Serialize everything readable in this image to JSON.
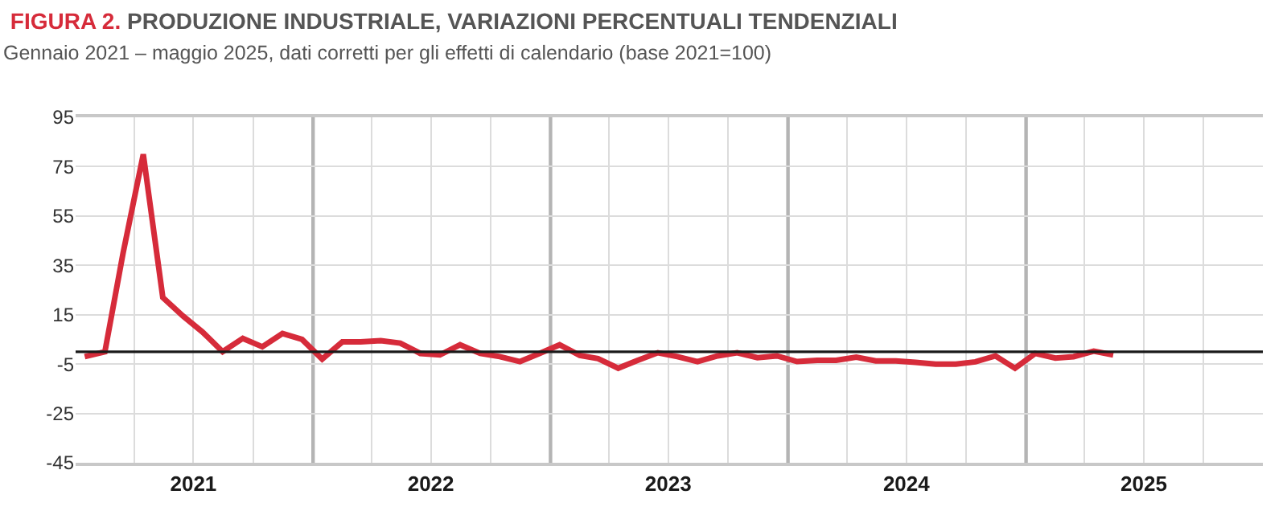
{
  "chart_data": {
    "type": "line",
    "title": "FIGURA 2. PRODUZIONE INDUSTRIALE, VARIAZIONI PERCENTUALI TENDENZIALI",
    "subtitle": "Gennaio 2021 – maggio 2025, dati corretti per gli effetti di calendario (base 2021=100)",
    "x": [
      "2021-01-15",
      "2021-02-15",
      "2021-03-15",
      "2021-04-15",
      "2021-05-15",
      "2021-06-15",
      "2021-07-15",
      "2021-08-15",
      "2021-09-15",
      "2021-10-15",
      "2021-11-15",
      "2021-12-15",
      "2022-01-15",
      "2022-02-15",
      "2022-03-15",
      "2022-04-15",
      "2022-05-15",
      "2022-06-15",
      "2022-07-15",
      "2022-08-15",
      "2022-09-15",
      "2022-10-15",
      "2022-11-15",
      "2022-12-15",
      "2023-01-15",
      "2023-02-15",
      "2023-03-15",
      "2023-04-15",
      "2023-05-15",
      "2023-06-15",
      "2023-07-15",
      "2023-08-15",
      "2023-09-15",
      "2023-10-15",
      "2023-11-15",
      "2023-12-15",
      "2024-01-15",
      "2024-02-15",
      "2024-03-15",
      "2024-04-15",
      "2024-05-15",
      "2024-06-15",
      "2024-07-15",
      "2024-08-15",
      "2024-09-15",
      "2024-10-15",
      "2024-11-15",
      "2024-12-15",
      "2025-01-15",
      "2025-02-15",
      "2025-03-15",
      "2025-04-15",
      "2025-05-15"
    ],
    "series": [
      {
        "color": "#d62b3a",
        "values": [
          -2,
          0,
          40,
          80,
          22,
          14.5,
          8,
          0,
          5.4,
          2,
          7.4,
          5,
          -3,
          4,
          4,
          4.5,
          3.5,
          -0.7,
          -1.3,
          2.8,
          -0.7,
          -2,
          -4,
          -0.7,
          2.8,
          -1.5,
          -2.8,
          -6.7,
          -3.5,
          -0.4,
          -2,
          -4,
          -1.7,
          -0.4,
          -2.4,
          -1.7,
          -4,
          -3.5,
          -3.5,
          -2.2,
          -3.7,
          -3.7,
          -4.3,
          -5,
          -5,
          -4.1,
          -1.7,
          -6.7,
          -0.7,
          -2.6,
          -2,
          0.2,
          -1.3
        ]
      }
    ],
    "xlim": [
      "2021-01-01",
      "2025-12-31"
    ],
    "xticks": [
      {
        "value": "2021-04-01",
        "label": null
      },
      {
        "value": "2021-07-01",
        "label": "2021"
      },
      {
        "value": "2021-10-01",
        "label": null
      },
      {
        "value": "2022-04-01",
        "label": null
      },
      {
        "value": "2022-07-01",
        "label": "2022"
      },
      {
        "value": "2022-10-01",
        "label": null
      },
      {
        "value": "2023-04-01",
        "label": null
      },
      {
        "value": "2023-07-01",
        "label": "2023"
      },
      {
        "value": "2023-10-01",
        "label": null
      },
      {
        "value": "2024-04-01",
        "label": null
      },
      {
        "value": "2024-07-01",
        "label": "2024"
      },
      {
        "value": "2024-10-01",
        "label": null
      },
      {
        "value": "2025-04-01",
        "label": null
      },
      {
        "value": "2025-07-01",
        "label": "2025"
      },
      {
        "value": "2025-10-01",
        "label": null
      }
    ],
    "ylim": [
      -45,
      95
    ],
    "yticks": [
      95,
      75,
      55,
      35,
      15,
      -5,
      -25,
      -45
    ],
    "grid": true,
    "marker": "none",
    "line_style": "solid",
    "ref_lines": [
      {
        "axis": "y",
        "value": 0,
        "color": "#1a1a1a"
      },
      {
        "axis": "x",
        "value": "2022-01-01",
        "color": "#b4b4b4"
      },
      {
        "axis": "x",
        "value": "2023-01-01",
        "color": "#b4b4b4"
      },
      {
        "axis": "x",
        "value": "2024-01-01",
        "color": "#b4b4b4"
      },
      {
        "axis": "x",
        "value": "2025-01-01",
        "color": "#b4b4b4"
      }
    ]
  }
}
